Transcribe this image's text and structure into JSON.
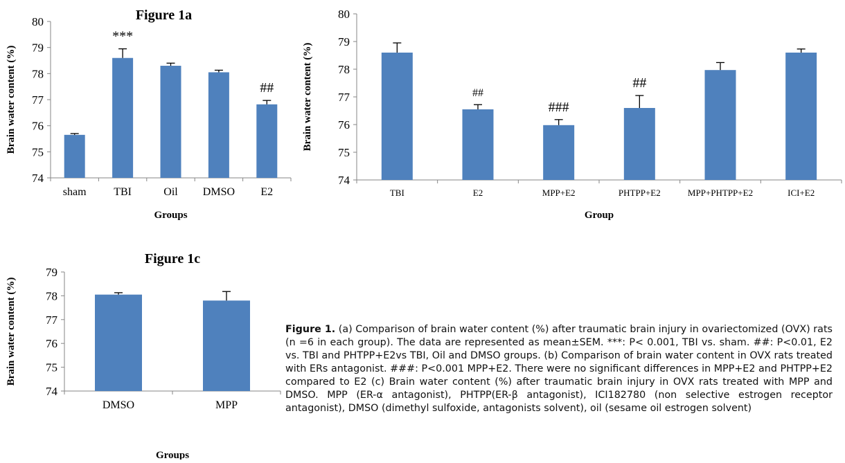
{
  "chart_data": [
    {
      "id": "a",
      "type": "bar",
      "title": "Figure 1a",
      "xlabel": "Groups",
      "ylabel": "Brain water content (%)",
      "ylim": [
        74,
        80
      ],
      "yticks": [
        "74",
        "75",
        "76",
        "77",
        "78",
        "79",
        "80"
      ],
      "categories": [
        "sham",
        "TBI",
        "Oil",
        "DMSO",
        "E2"
      ],
      "values": [
        75.65,
        78.6,
        78.3,
        78.05,
        76.82
      ],
      "errors": [
        0.05,
        0.35,
        0.1,
        0.08,
        0.15
      ],
      "annotations": [
        "",
        "***",
        "",
        "",
        "##"
      ],
      "bar_color": "#4f81bd",
      "grid": false
    },
    {
      "id": "b",
      "type": "bar",
      "title": "",
      "xlabel": "Group",
      "ylabel": "Brain water content (%)",
      "ylim": [
        74,
        80
      ],
      "yticks": [
        "74",
        "75",
        "76",
        "77",
        "78",
        "79",
        "80"
      ],
      "categories": [
        "TBI",
        "E2",
        "MPP+E2",
        "PHTPP+E2",
        "MPP+PHTPP+E2",
        "ICI+E2"
      ],
      "values": [
        78.6,
        76.55,
        75.98,
        76.6,
        77.97,
        78.6
      ],
      "errors": [
        0.35,
        0.17,
        0.2,
        0.45,
        0.27,
        0.13
      ],
      "annotations": [
        "",
        "##",
        "###",
        "##",
        "",
        ""
      ],
      "bar_color": "#4f81bd",
      "grid": false
    },
    {
      "id": "c",
      "type": "bar",
      "title": "Figure 1c",
      "xlabel": "Groups",
      "ylabel": "Brain water content (%)",
      "ylim": [
        74,
        79
      ],
      "yticks": [
        "74",
        "75",
        "76",
        "77",
        "78",
        "79"
      ],
      "categories": [
        "DMSO",
        "MPP"
      ],
      "values": [
        78.05,
        77.8
      ],
      "errors": [
        0.08,
        0.38
      ],
      "annotations": [
        "",
        ""
      ],
      "bar_color": "#4f81bd",
      "grid": false
    }
  ],
  "caption": {
    "label": "Figure 1.",
    "text": " (a) Comparison of brain water content (%) after traumatic brain injury in ovariectomized (OVX) rats (n =6 in each group). The data are represented as mean±SEM. ***: P< 0.001, TBI vs. sham. ##: P<0.01, E2 vs. TBI and PHTPP+E2vs TBI, Oil and DMSO groups. (b) Comparison of brain water content in OVX rats treated with ERs antagonist. ###: P<0.001 MPP+E2. There were no significant differences in MPP+E2 and PHTPP+E2 compared to E2 (c) Brain water content (%) after traumatic brain injury in OVX rats treated with MPP and DMSO. MPP (ER-α antagonist), PHTPP(ER-β antagonist), ICI182780 (non selective estrogen receptor antagonist), DMSO (dimethyl sulfoxide, antagonists solvent), oil (sesame oil estrogen solvent)"
  }
}
